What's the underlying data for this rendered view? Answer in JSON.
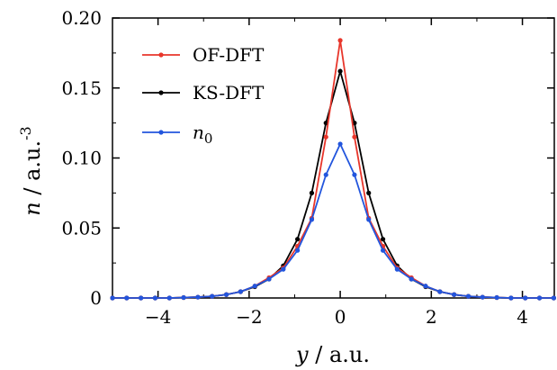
{
  "chart_data": {
    "type": "line",
    "xlabel": {
      "symbol": "y",
      "unit": " / a.u."
    },
    "ylabel": {
      "symbol": "n",
      "unit": " / a.u.",
      "exponent": "-3"
    },
    "xlim": [
      -5,
      4.7
    ],
    "ylim": [
      0,
      0.2
    ],
    "xticks": [
      -4,
      -2,
      0,
      2,
      4
    ],
    "xtick_labels": [
      "−4",
      "−2",
      "0",
      "2",
      "4"
    ],
    "yticks": [
      0,
      0.05,
      0.1,
      0.15,
      0.2
    ],
    "ytick_labels": [
      "0",
      "0.05",
      "0.10",
      "0.15",
      "0.20"
    ],
    "legend_position": "top-left",
    "series": [
      {
        "name": "OF-DFT",
        "color": "#e8362b",
        "x": [
          -5.0,
          -4.688,
          -4.375,
          -4.063,
          -3.75,
          -3.438,
          -3.125,
          -2.813,
          -2.5,
          -2.188,
          -1.875,
          -1.563,
          -1.25,
          -0.938,
          -0.625,
          -0.313,
          0.0,
          0.313,
          0.625,
          0.938,
          1.25,
          1.563,
          1.875,
          2.188,
          2.5,
          2.813,
          3.125,
          3.438,
          3.75,
          4.063,
          4.375,
          4.688
        ],
        "y": [
          0.0,
          0.0,
          0.0,
          0.0,
          0.0,
          0.0003,
          0.0006,
          0.0012,
          0.0024,
          0.0045,
          0.0085,
          0.0145,
          0.0215,
          0.037,
          0.057,
          0.115,
          0.184,
          0.115,
          0.057,
          0.037,
          0.0215,
          0.0145,
          0.0085,
          0.0045,
          0.0024,
          0.0012,
          0.0006,
          0.0003,
          0.0,
          0.0,
          0.0,
          0.0
        ]
      },
      {
        "name": "KS-DFT",
        "color": "#000000",
        "x": [
          -5.0,
          -4.688,
          -4.375,
          -4.063,
          -3.75,
          -3.438,
          -3.125,
          -2.813,
          -2.5,
          -2.188,
          -1.875,
          -1.563,
          -1.25,
          -0.938,
          -0.625,
          -0.313,
          0.0,
          0.313,
          0.625,
          0.938,
          1.25,
          1.563,
          1.875,
          2.188,
          2.5,
          2.813,
          3.125,
          3.438,
          3.75,
          4.063,
          4.375,
          4.688
        ],
        "y": [
          0.0,
          0.0,
          0.0,
          0.0,
          0.0,
          0.0003,
          0.0006,
          0.0012,
          0.0024,
          0.0045,
          0.008,
          0.0135,
          0.023,
          0.042,
          0.075,
          0.125,
          0.162,
          0.125,
          0.075,
          0.042,
          0.023,
          0.0135,
          0.008,
          0.0045,
          0.0024,
          0.0012,
          0.0006,
          0.0003,
          0.0,
          0.0,
          0.0,
          0.0
        ]
      },
      {
        "name": "n0",
        "name_symbol": "n",
        "name_subscript": "0",
        "color": "#2255dd",
        "x": [
          -5.0,
          -4.688,
          -4.375,
          -4.063,
          -3.75,
          -3.438,
          -3.125,
          -2.813,
          -2.5,
          -2.188,
          -1.875,
          -1.563,
          -1.25,
          -0.938,
          -0.625,
          -0.313,
          0.0,
          0.313,
          0.625,
          0.938,
          1.25,
          1.563,
          1.875,
          2.188,
          2.5,
          2.813,
          3.125,
          3.438,
          3.75,
          4.063,
          4.375,
          4.688
        ],
        "y": [
          0.0,
          0.0,
          0.0,
          0.0,
          0.0,
          0.0003,
          0.0006,
          0.0012,
          0.0024,
          0.0045,
          0.0085,
          0.0135,
          0.0205,
          0.034,
          0.056,
          0.088,
          0.11,
          0.088,
          0.056,
          0.034,
          0.0205,
          0.0135,
          0.0085,
          0.0045,
          0.0024,
          0.0012,
          0.0006,
          0.0003,
          0.0,
          0.0,
          0.0,
          0.0
        ]
      }
    ]
  }
}
